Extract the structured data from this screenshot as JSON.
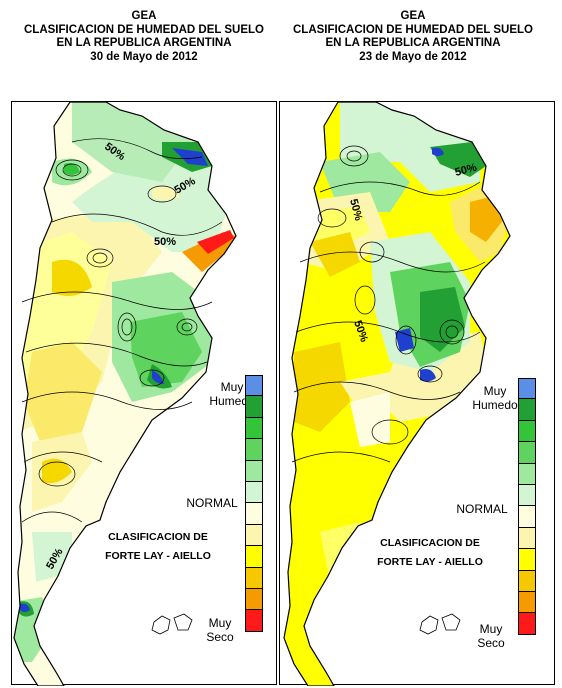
{
  "maps": [
    {
      "header": [
        "GEA",
        "CLASIFICACION DE HUMEDAD DEL SUELO",
        "EN LA REPUBLICA ARGENTINA",
        "30 de Mayo de 2012"
      ],
      "contour_labels": [
        "50%",
        "50%",
        "50%",
        "50%"
      ]
    },
    {
      "header": [
        "GEA",
        "CLASIFICACION DE HUMEDAD DEL SUELO",
        "EN LA REPUBLICA ARGENTINA",
        "23 de Mayo de 2012"
      ],
      "contour_labels": [
        "50%",
        "50%",
        "50%"
      ]
    }
  ],
  "legend": {
    "wet_label": [
      "Muy",
      "Humedo"
    ],
    "normal_label": "NORMAL",
    "dry_label": [
      "Muy",
      "Seco"
    ],
    "classification": [
      "CLASIFICACION DE",
      "FORTE LAY - AIELLO"
    ],
    "scale_colors": [
      "#5b8fe6",
      "#22a033",
      "#33c43a",
      "#5ed35e",
      "#9fe89f",
      "#d3f5d3",
      "#fffde0",
      "#fbf5b0",
      "#ffff00",
      "#f5c800",
      "#f59a00",
      "#ff1a1a"
    ]
  },
  "colors": {
    "very_dry": "#ff1a1a",
    "dry": "#f59a00",
    "moderately_dry": "#f5c800",
    "slightly_dry": "#ffff00",
    "pale_dry": "#fbf5b0",
    "normal": "#fffde0",
    "slightly_wet": "#d3f5d3",
    "wet": "#9fe89f",
    "moderately_wet": "#5ed35e",
    "very_wet": "#22a033",
    "extreme_wet": "#5b8fe6"
  }
}
